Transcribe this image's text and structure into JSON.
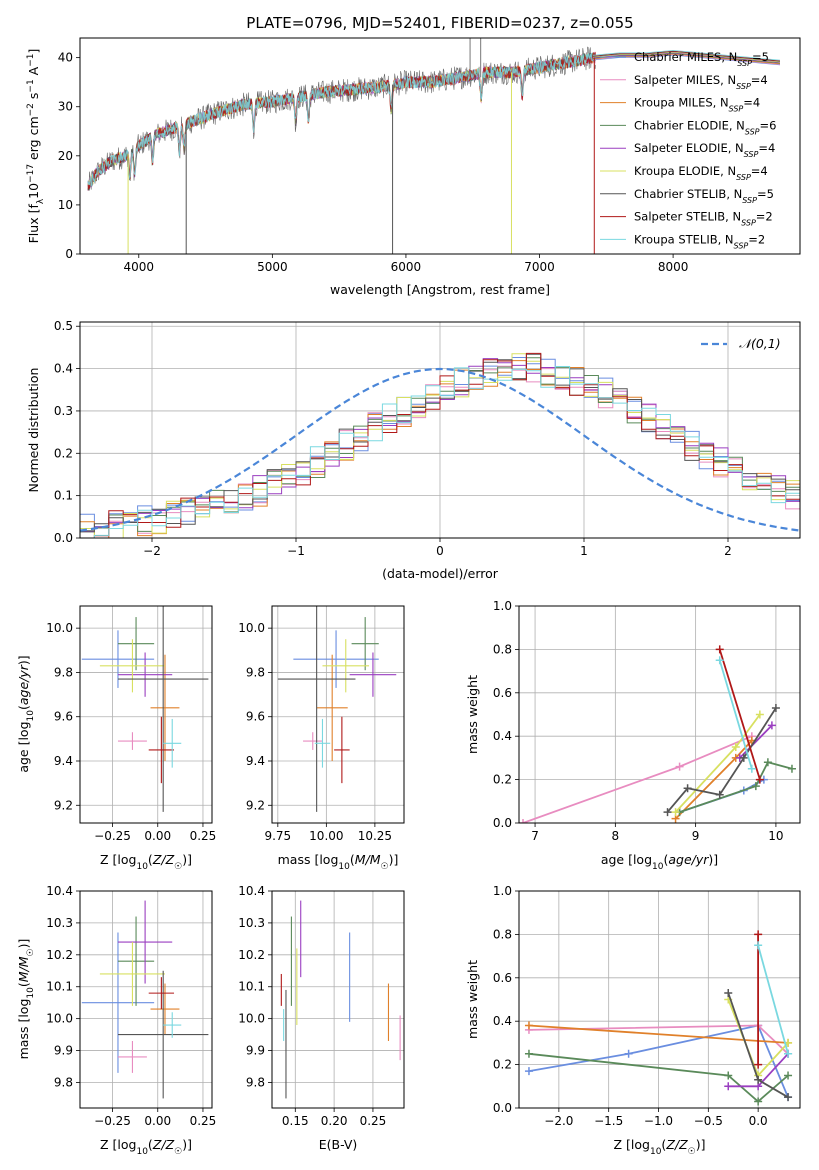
{
  "figure_title": "PLATE=0796, MJD=52401, FIBERID=0237, z=0.055",
  "legend_spectrum": [
    {
      "label": "Chabrier MILES, N_SSP=5",
      "color": "#6a8ee0"
    },
    {
      "label": "Salpeter MILES, N_SSP=4",
      "color": "#e88cc0"
    },
    {
      "label": "Kroupa MILES, N_SSP=4",
      "color": "#e0802a"
    },
    {
      "label": "Chabrier ELODIE, N_SSP=6",
      "color": "#5a8a5a"
    },
    {
      "label": "Salpeter ELODIE, N_SSP=4",
      "color": "#9a3ec0"
    },
    {
      "label": "Kroupa ELODIE, N_SSP=4",
      "color": "#d8e060"
    },
    {
      "label": "Chabrier STELIB, N_SSP=5",
      "color": "#555555"
    },
    {
      "label": "Salpeter STELIB, N_SSP=2",
      "color": "#b01818"
    },
    {
      "label": "Kroupa STELIB, N_SSP=2",
      "color": "#7ad8e0"
    }
  ],
  "chart_data": [
    {
      "id": "spectrum",
      "type": "line",
      "xlabel": "wavelength [Angstrom, rest frame]",
      "ylabel": "Flux [f_λ 10^-17 erg cm^-2 s^-1 A^-1]",
      "xlim": [
        3560,
        8950
      ],
      "ylim": [
        0,
        44
      ],
      "xticks": [
        4000,
        5000,
        6000,
        7000,
        8000
      ],
      "yticks": [
        0,
        10,
        20,
        30,
        40
      ],
      "continuum": {
        "x": [
          3600,
          3700,
          3800,
          3900,
          4000,
          4100,
          4200,
          4400,
          4600,
          4800,
          5000,
          5200,
          5400,
          5600,
          5800,
          6000,
          6200,
          6400,
          6600,
          6800,
          7000,
          7200,
          7400
        ],
        "y": [
          13,
          17,
          19,
          20,
          22,
          24,
          25,
          27,
          29,
          30.5,
          31,
          32,
          33,
          33.5,
          34,
          35,
          35,
          36,
          37,
          37,
          38,
          39,
          40
        ]
      },
      "model_curve": {
        "x": [
          7400,
          7600,
          7800,
          8000,
          8200,
          8400,
          8600,
          8800
        ],
        "y": [
          40,
          40.5,
          40.5,
          41,
          40.5,
          40,
          39.5,
          39
        ]
      },
      "grid": false
    },
    {
      "id": "residual_hist",
      "type": "line",
      "xlabel": "(data-model)/error",
      "ylabel": "Normed distribution",
      "xlim": [
        -2.5,
        2.5
      ],
      "ylim": [
        0,
        0.51
      ],
      "xticks": [
        -2,
        -1,
        0,
        1,
        2
      ],
      "yticks": [
        0.0,
        0.1,
        0.2,
        0.3,
        0.4,
        0.5
      ],
      "legend": "𝒩(0,1)",
      "gaussian": {
        "mean": 0,
        "sigma": 1
      },
      "bin_width": 0.1,
      "hist_base": [
        0.02,
        0.02,
        0.03,
        0.03,
        0.04,
        0.04,
        0.05,
        0.06,
        0.07,
        0.08,
        0.09,
        0.1,
        0.11,
        0.13,
        0.14,
        0.16,
        0.18,
        0.2,
        0.22,
        0.24,
        0.26,
        0.28,
        0.3,
        0.32,
        0.34,
        0.35,
        0.37,
        0.38,
        0.39,
        0.4,
        0.4,
        0.4,
        0.39,
        0.38,
        0.37,
        0.35,
        0.34,
        0.32,
        0.3,
        0.28,
        0.26,
        0.24,
        0.22,
        0.2,
        0.18,
        0.16,
        0.14,
        0.13,
        0.11,
        0.1
      ],
      "grid": true
    },
    {
      "id": "z_vs_age",
      "type": "scatter",
      "xlabel": "Z [log10(Z/Z☉)]",
      "ylabel": "age [log10(age/yr)]",
      "xlim": [
        -0.43,
        0.3
      ],
      "ylim": [
        9.12,
        10.1
      ],
      "xticks": [
        -0.25,
        0.0,
        0.25
      ],
      "yticks": [
        9.2,
        9.4,
        9.6,
        9.8,
        10.0
      ],
      "points": [
        {
          "x": -0.22,
          "y": 9.86,
          "xerr": 0.2,
          "yerr": 0.13,
          "series": 0
        },
        {
          "x": -0.14,
          "y": 9.49,
          "xerr": 0.08,
          "yerr": 0.04,
          "series": 1
        },
        {
          "x": 0.04,
          "y": 9.64,
          "xerr": 0.08,
          "yerr": 0.24,
          "series": 2
        },
        {
          "x": -0.12,
          "y": 9.93,
          "xerr": 0.1,
          "yerr": 0.12,
          "series": 3
        },
        {
          "x": -0.07,
          "y": 9.79,
          "xerr": 0.15,
          "yerr": 0.1,
          "series": 4
        },
        {
          "x": -0.14,
          "y": 9.83,
          "xerr": 0.18,
          "yerr": 0.12,
          "series": 5
        },
        {
          "x": 0.03,
          "y": 9.77,
          "xerr": 0.25,
          "yerr": 0.6,
          "series": 6
        },
        {
          "x": 0.02,
          "y": 9.45,
          "xerr": 0.07,
          "yerr": 0.15,
          "series": 7
        },
        {
          "x": 0.08,
          "y": 9.48,
          "xerr": 0.05,
          "yerr": 0.11,
          "series": 8
        }
      ],
      "grid": true
    },
    {
      "id": "mass_vs_age",
      "type": "scatter",
      "xlabel": "mass [log10(M/M☉)]",
      "ylabel": "",
      "xlim": [
        9.72,
        10.4
      ],
      "ylim": [
        9.12,
        10.1
      ],
      "xticks": [
        9.75,
        10.0,
        10.25
      ],
      "yticks": [
        9.2,
        9.4,
        9.6,
        9.8,
        10.0
      ],
      "points": [
        {
          "x": 10.05,
          "y": 9.86,
          "xerr": 0.22,
          "yerr": 0.13,
          "series": 0
        },
        {
          "x": 9.93,
          "y": 9.49,
          "xerr": 0.05,
          "yerr": 0.04,
          "series": 1
        },
        {
          "x": 10.03,
          "y": 9.64,
          "xerr": 0.08,
          "yerr": 0.24,
          "series": 2
        },
        {
          "x": 10.2,
          "y": 9.93,
          "xerr": 0.07,
          "yerr": 0.12,
          "series": 3
        },
        {
          "x": 10.24,
          "y": 9.79,
          "xerr": 0.12,
          "yerr": 0.1,
          "series": 4
        },
        {
          "x": 10.1,
          "y": 9.83,
          "xerr": 0.12,
          "yerr": 0.12,
          "series": 5
        },
        {
          "x": 9.95,
          "y": 9.77,
          "xerr": 0.2,
          "yerr": 0.6,
          "series": 6
        },
        {
          "x": 10.08,
          "y": 9.45,
          "xerr": 0.04,
          "yerr": 0.15,
          "series": 7
        },
        {
          "x": 9.98,
          "y": 9.48,
          "xerr": 0.04,
          "yerr": 0.11,
          "series": 8
        }
      ],
      "grid": true
    },
    {
      "id": "age_vs_weight",
      "type": "line",
      "xlabel": "age [log10(age/yr)]",
      "ylabel": "mass weight",
      "xlim": [
        6.8,
        10.3
      ],
      "ylim": [
        0,
        1
      ],
      "xticks": [
        7,
        8,
        9,
        10
      ],
      "yticks": [
        0.0,
        0.2,
        0.4,
        0.6,
        0.8,
        1.0
      ],
      "series": [
        {
          "x": [
            8.8,
            9.6,
            9.85
          ],
          "y": [
            0.05,
            0.15,
            0.2
          ],
          "series": 0
        },
        {
          "x": [
            6.85,
            8.8,
            9.7
          ],
          "y": [
            0.0,
            0.26,
            0.4
          ],
          "series": 1
        },
        {
          "x": [
            8.75,
            9.5,
            9.7
          ],
          "y": [
            0.02,
            0.3,
            0.38
          ],
          "series": 2
        },
        {
          "x": [
            8.8,
            9.75,
            9.9,
            10.2
          ],
          "y": [
            0.05,
            0.17,
            0.28,
            0.25
          ],
          "series": 3
        },
        {
          "x": [
            9.55,
            9.95
          ],
          "y": [
            0.3,
            0.45
          ],
          "series": 4
        },
        {
          "x": [
            8.75,
            9.5,
            9.8
          ],
          "y": [
            0.05,
            0.35,
            0.5
          ],
          "series": 5
        },
        {
          "x": [
            8.65,
            8.9,
            9.3,
            9.6,
            10.0
          ],
          "y": [
            0.05,
            0.16,
            0.13,
            0.3,
            0.53
          ],
          "series": 6
        },
        {
          "x": [
            9.3,
            9.8
          ],
          "y": [
            0.8,
            0.2
          ],
          "series": 7
        },
        {
          "x": [
            9.3,
            9.7
          ],
          "y": [
            0.75,
            0.25
          ],
          "series": 8
        }
      ],
      "grid": true
    },
    {
      "id": "z_vs_mass",
      "type": "scatter",
      "xlabel": "Z [log10(Z/Z☉)]",
      "ylabel": "mass [log10(M/M☉)]",
      "xlim": [
        -0.43,
        0.3
      ],
      "ylim": [
        9.72,
        10.4
      ],
      "xticks": [
        -0.25,
        0.0,
        0.25
      ],
      "yticks": [
        9.8,
        9.9,
        10.0,
        10.1,
        10.2,
        10.3,
        10.4
      ],
      "points": [
        {
          "x": -0.22,
          "y": 10.05,
          "xerr": 0.2,
          "yerr": 0.22,
          "series": 0
        },
        {
          "x": -0.14,
          "y": 9.88,
          "xerr": 0.08,
          "yerr": 0.05,
          "series": 1
        },
        {
          "x": 0.04,
          "y": 10.03,
          "xerr": 0.08,
          "yerr": 0.08,
          "series": 2
        },
        {
          "x": -0.12,
          "y": 10.18,
          "xerr": 0.1,
          "yerr": 0.14,
          "series": 3
        },
        {
          "x": -0.07,
          "y": 10.24,
          "xerr": 0.15,
          "yerr": 0.13,
          "series": 4
        },
        {
          "x": -0.14,
          "y": 10.14,
          "xerr": 0.18,
          "yerr": 0.1,
          "series": 5
        },
        {
          "x": 0.03,
          "y": 9.95,
          "xerr": 0.25,
          "yerr": 0.2,
          "series": 6
        },
        {
          "x": 0.02,
          "y": 10.08,
          "xerr": 0.07,
          "yerr": 0.05,
          "series": 7
        },
        {
          "x": 0.08,
          "y": 9.98,
          "xerr": 0.05,
          "yerr": 0.04,
          "series": 8
        }
      ],
      "grid": true
    },
    {
      "id": "ebv_vs_mass",
      "type": "scatter",
      "xlabel": "E(B-V)",
      "ylabel": "",
      "xlim": [
        0.12,
        0.29
      ],
      "ylim": [
        9.72,
        10.4
      ],
      "xticks": [
        0.15,
        0.2,
        0.25
      ],
      "yticks": [
        9.8,
        9.9,
        10.0,
        10.1,
        10.2,
        10.3,
        10.4
      ],
      "points": [
        {
          "x": 0.22,
          "y": 10.13,
          "xerr": 0.0,
          "yerr": 0.14,
          "series": 0
        },
        {
          "x": 0.285,
          "y": 9.94,
          "xerr": 0.0,
          "yerr": 0.07,
          "series": 1
        },
        {
          "x": 0.27,
          "y": 10.02,
          "xerr": 0.0,
          "yerr": 0.09,
          "series": 2
        },
        {
          "x": 0.145,
          "y": 10.18,
          "xerr": 0.0,
          "yerr": 0.14,
          "series": 3
        },
        {
          "x": 0.157,
          "y": 10.25,
          "xerr": 0.0,
          "yerr": 0.12,
          "series": 4
        },
        {
          "x": 0.152,
          "y": 10.1,
          "xerr": 0.0,
          "yerr": 0.12,
          "series": 5
        },
        {
          "x": 0.138,
          "y": 9.92,
          "xerr": 0.0,
          "yerr": 0.17,
          "series": 6
        },
        {
          "x": 0.132,
          "y": 10.09,
          "xerr": 0.0,
          "yerr": 0.05,
          "series": 7
        },
        {
          "x": 0.135,
          "y": 9.98,
          "xerr": 0.0,
          "yerr": 0.05,
          "series": 8
        }
      ],
      "grid": true
    },
    {
      "id": "z_vs_weight",
      "type": "line",
      "xlabel": "Z [log10(Z/Z☉)]",
      "ylabel": "mass weight",
      "xlim": [
        -2.4,
        0.42
      ],
      "ylim": [
        0,
        1
      ],
      "xticks": [
        -2.0,
        -1.5,
        -1.0,
        -0.5,
        0.0
      ],
      "yticks": [
        0.0,
        0.2,
        0.4,
        0.6,
        0.8,
        1.0
      ],
      "series": [
        {
          "x": [
            -2.3,
            -1.3,
            0.0,
            0.3
          ],
          "y": [
            0.17,
            0.25,
            0.38,
            0.05
          ],
          "series": 0
        },
        {
          "x": [
            -2.3,
            0.0,
            0.3
          ],
          "y": [
            0.36,
            0.38,
            0.25
          ],
          "series": 1
        },
        {
          "x": [
            -2.3,
            0.3
          ],
          "y": [
            0.38,
            0.3
          ],
          "series": 2
        },
        {
          "x": [
            -2.3,
            -0.3,
            0.0,
            0.3
          ],
          "y": [
            0.25,
            0.15,
            0.03,
            0.15
          ],
          "series": 3
        },
        {
          "x": [
            -0.3,
            0.0,
            0.3
          ],
          "y": [
            0.1,
            0.1,
            0.25
          ],
          "series": 4
        },
        {
          "x": [
            -0.3,
            0.0,
            0.3
          ],
          "y": [
            0.5,
            0.15,
            0.3
          ],
          "series": 5
        },
        {
          "x": [
            -0.3,
            0.0,
            0.3
          ],
          "y": [
            0.53,
            0.13,
            0.05
          ],
          "series": 6
        },
        {
          "x": [
            0.0,
            0.0
          ],
          "y": [
            0.8,
            0.2
          ],
          "series": 7
        },
        {
          "x": [
            0.0,
            0.3
          ],
          "y": [
            0.75,
            0.25
          ],
          "series": 8
        }
      ],
      "grid": true
    }
  ]
}
